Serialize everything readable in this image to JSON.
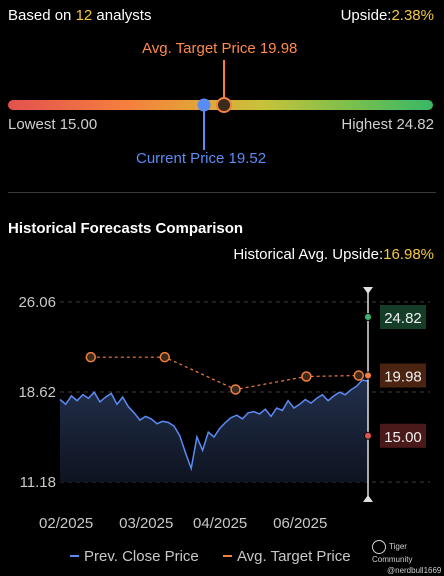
{
  "header": {
    "analysts_prefix": "Based on",
    "analysts_count": "12",
    "analysts_suffix": "analysts",
    "upside_label": "Upside:",
    "upside_value": "2.38%"
  },
  "range": {
    "avg_target_label": "Avg. Target Price 19.98",
    "lowest_label": "Lowest 15.00",
    "highest_label": "Highest 24.82",
    "current_label": "Current Price 19.52",
    "low": 15.0,
    "high": 24.82,
    "current": 19.52,
    "avg_target": 19.98
  },
  "historical": {
    "title": "Historical Forecasts Comparison",
    "upside_label": "Historical Avg. Upside:",
    "upside_value": "16.98%"
  },
  "chart_data": {
    "type": "line",
    "y_ticks": [
      "26.06",
      "18.62",
      "11.18"
    ],
    "x_ticks": [
      "02/2025",
      "03/2025",
      "04/2025",
      "06/2025"
    ],
    "ylim": [
      11.18,
      26.06
    ],
    "grid": true,
    "series": [
      {
        "name": "Prev. Close Price",
        "color": "#5b8bf5",
        "values": [
          18.0,
          17.6,
          18.3,
          17.9,
          18.4,
          18.1,
          18.6,
          17.8,
          18.2,
          18.5,
          17.6,
          18.2,
          17.4,
          16.9,
          16.3,
          16.6,
          16.4,
          16.0,
          16.2,
          16.1,
          15.8,
          15.0,
          13.6,
          12.3,
          14.9,
          13.8,
          15.3,
          14.9,
          15.6,
          16.1,
          16.5,
          16.7,
          16.4,
          16.9,
          17.0,
          16.8,
          17.2,
          16.6,
          17.3,
          17.1,
          17.9,
          17.3,
          17.6,
          18.0,
          17.7,
          18.1,
          18.4,
          17.9,
          18.3,
          18.6,
          18.4,
          18.8,
          19.1,
          19.6,
          19.52
        ]
      },
      {
        "name": "Avg. Target Price",
        "color": "#f57f3e",
        "points": [
          {
            "x": 0.1,
            "y": 21.5
          },
          {
            "x": 0.34,
            "y": 21.5
          },
          {
            "x": 0.57,
            "y": 18.83
          },
          {
            "x": 0.8,
            "y": 19.9
          },
          {
            "x": 0.97,
            "y": 19.98
          }
        ]
      }
    ],
    "end_labels": [
      {
        "text": "24.82",
        "value": 24.82,
        "color": "#3fb36e",
        "bg": "#163d28"
      },
      {
        "text": "19.98",
        "value": 19.98,
        "color": "#f57f3e",
        "bg": "#4a2410"
      },
      {
        "text": "15.00",
        "value": 15.0,
        "color": "#e05252",
        "bg": "#4a1a1a"
      }
    ]
  },
  "legend": {
    "close_label": "Prev. Close Price",
    "target_label": "Avg. Target Price"
  },
  "watermark": {
    "line1": "Tiger Community",
    "line2": "@nerdbull1669"
  }
}
